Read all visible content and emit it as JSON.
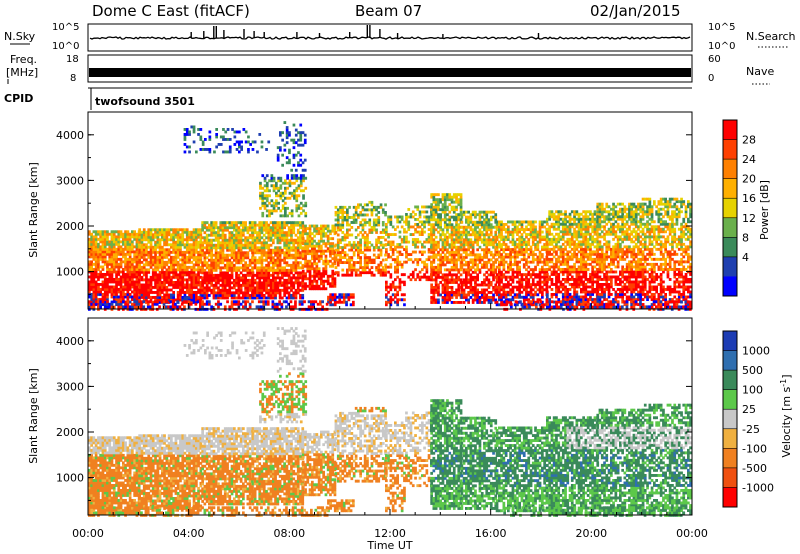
{
  "header": {
    "station": "Dome C East (fitACF)",
    "beam": "Beam 07",
    "date": "02/Jan/2015"
  },
  "strips": {
    "nsky_label": "N.Sky",
    "nsky_ticks": [
      "10^5",
      "10^0"
    ],
    "nsearch_label": "N.Search",
    "nsearch_ticks": [
      "10^5",
      "10^0"
    ],
    "freq_label_1": "Freq.",
    "freq_label_2": "[MHz]",
    "freq_ticks": [
      "18",
      "8"
    ],
    "nave_label": "Nave",
    "nave_ticks": [
      "60",
      "0"
    ],
    "cpid_label": "CPID",
    "cpid_value": "twofsound 3501"
  },
  "chart_data": [
    {
      "type": "heatmap",
      "name": "power-panel",
      "ylabel": "Slant Range [km]",
      "yticks": [
        1000,
        2000,
        3000,
        4000
      ],
      "ylim": [
        180,
        4500
      ],
      "xlim_hours": [
        0,
        24
      ],
      "colorbar_label": "Power [dB]",
      "colorbar_ticks": [
        "28",
        "24",
        "20",
        "16",
        "12",
        "8",
        "4"
      ],
      "colorbar_colors": [
        "#ff0000",
        "#ff4000",
        "#ff8000",
        "#ffb000",
        "#e6d200",
        "#6ab04c",
        "#3a8a5a",
        "#1f3fb0",
        "#0000ff"
      ]
    },
    {
      "type": "heatmap",
      "name": "velocity-panel",
      "ylabel": "Slant Range [km]",
      "yticks": [
        1000,
        2000,
        3000,
        4000
      ],
      "ylim": [
        180,
        4500
      ],
      "xlim_hours": [
        0,
        24
      ],
      "xlabel": "Time UT",
      "xticks": [
        "00:00",
        "04:00",
        "08:00",
        "12:00",
        "16:00",
        "20:00",
        "00:00"
      ],
      "colorbar_label_main": "Velocity [m s",
      "colorbar_label_exp": "-1",
      "colorbar_label_end": "]",
      "colorbar_ticks": [
        "1000",
        "500",
        "100",
        "25",
        "-25",
        "-100",
        "-500",
        "-1000"
      ],
      "colorbar_colors": [
        "#1c3cb4",
        "#2f6fb0",
        "#3a8a5a",
        "#5cc84a",
        "#c8c8c8",
        "#f0b040",
        "#f08020",
        "#f05010",
        "#ff0000"
      ]
    }
  ]
}
